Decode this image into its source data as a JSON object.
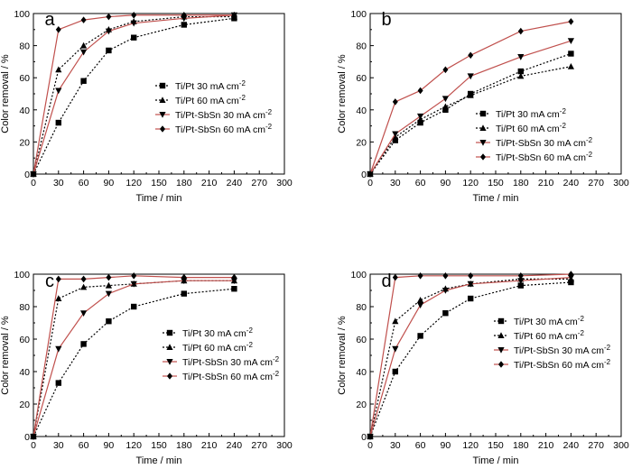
{
  "chart_data": [
    {
      "type": "line",
      "panel_label": "a",
      "xlabel": "Time / min",
      "ylabel": "Color removal / %",
      "xlim": [
        0,
        300
      ],
      "ylim": [
        0,
        100
      ],
      "xticks": [
        0,
        30,
        60,
        90,
        120,
        150,
        180,
        210,
        240,
        270,
        300
      ],
      "yticks": [
        0,
        20,
        40,
        60,
        80,
        100
      ],
      "x": [
        0,
        30,
        60,
        90,
        120,
        180,
        240
      ],
      "series": [
        {
          "name": "Ti/Pt 30 mA cm",
          "superscript": "-2",
          "marker": "square",
          "line": "dotted",
          "color": "#000000",
          "values": [
            0,
            32,
            58,
            77,
            85,
            93,
            97
          ]
        },
        {
          "name": "Ti/Pt 60 mA cm",
          "superscript": "-2",
          "marker": "triangle-up",
          "line": "dotted",
          "color": "#000000",
          "values": [
            0,
            65,
            80,
            90,
            95,
            98,
            98
          ]
        },
        {
          "name": "Ti/Pt-SbSn 30 mA cm",
          "superscript": "-2",
          "marker": "triangle-down",
          "line": "solid",
          "color": "#c0504d",
          "values": [
            0,
            52,
            76,
            89,
            94,
            97,
            99
          ]
        },
        {
          "name": "Ti/Pt-SbSn 60 mA cm",
          "superscript": "-2",
          "marker": "diamond",
          "line": "solid",
          "color": "#c0504d",
          "values": [
            0,
            90,
            96,
            98,
            99,
            99,
            99
          ]
        }
      ]
    },
    {
      "type": "line",
      "panel_label": "b",
      "xlabel": "Time / min",
      "ylabel": "Color removal / %",
      "xlim": [
        0,
        300
      ],
      "ylim": [
        0,
        100
      ],
      "xticks": [
        0,
        30,
        60,
        90,
        120,
        150,
        180,
        210,
        240,
        270,
        300
      ],
      "yticks": [
        0,
        20,
        40,
        60,
        80,
        100
      ],
      "x": [
        0,
        30,
        60,
        90,
        120,
        180,
        240
      ],
      "series": [
        {
          "name": "Ti/Pt 30 mA cm",
          "superscript": "-2",
          "marker": "square",
          "line": "dotted",
          "color": "#000000",
          "values": [
            0,
            21,
            32,
            40,
            50,
            64,
            75
          ]
        },
        {
          "name": "Ti/Pt 60 mA cm",
          "superscript": "-2",
          "marker": "triangle-up",
          "line": "dotted",
          "color": "#000000",
          "values": [
            0,
            23,
            34,
            42,
            49,
            61,
            67
          ]
        },
        {
          "name": "Ti/Pt-SbSn 30 mA cm",
          "superscript": "-2",
          "marker": "triangle-down",
          "line": "solid",
          "color": "#c0504d",
          "values": [
            0,
            25,
            36,
            47,
            61,
            73,
            83
          ]
        },
        {
          "name": "Ti/Pt-SbSn 60 mA cm",
          "superscript": "-2",
          "marker": "diamond",
          "line": "solid",
          "color": "#c0504d",
          "values": [
            0,
            45,
            52,
            65,
            74,
            89,
            95
          ]
        }
      ]
    },
    {
      "type": "line",
      "panel_label": "c",
      "xlabel": "Time / min",
      "ylabel": "Color removal / %",
      "xlim": [
        0,
        300
      ],
      "ylim": [
        0,
        100
      ],
      "xticks": [
        0,
        30,
        60,
        90,
        120,
        150,
        180,
        210,
        240,
        270,
        300
      ],
      "yticks": [
        0,
        20,
        40,
        60,
        80,
        100
      ],
      "x": [
        0,
        30,
        60,
        90,
        120,
        180,
        240
      ],
      "series": [
        {
          "name": "Ti/Pt 30 mA cm",
          "superscript": "-2",
          "marker": "square",
          "line": "dotted",
          "color": "#000000",
          "values": [
            0,
            33,
            57,
            71,
            80,
            88,
            91
          ]
        },
        {
          "name": "Ti/Pt 60 mA cm",
          "superscript": "-2",
          "marker": "triangle-up",
          "line": "dotted",
          "color": "#000000",
          "values": [
            0,
            85,
            92,
            93,
            94,
            96,
            96
          ]
        },
        {
          "name": "Ti/Pt-SbSn 30 mA cm",
          "superscript": "-2",
          "marker": "triangle-down",
          "line": "solid",
          "color": "#c0504d",
          "values": [
            0,
            54,
            76,
            88,
            94,
            96,
            96
          ]
        },
        {
          "name": "Ti/Pt-SbSn 60 mA cm",
          "superscript": "-2",
          "marker": "diamond",
          "line": "solid",
          "color": "#c0504d",
          "values": [
            0,
            97,
            97,
            98,
            99,
            98,
            98
          ]
        }
      ]
    },
    {
      "type": "line",
      "panel_label": "d",
      "xlabel": "Time / min",
      "ylabel": "Color removal / %",
      "xlim": [
        0,
        300
      ],
      "ylim": [
        0,
        100
      ],
      "xticks": [
        0,
        30,
        60,
        90,
        120,
        150,
        180,
        210,
        240,
        270,
        300
      ],
      "yticks": [
        0,
        20,
        40,
        60,
        80,
        100
      ],
      "x": [
        0,
        30,
        60,
        90,
        120,
        180,
        240
      ],
      "series": [
        {
          "name": "Ti/Pt 30 mA cm",
          "superscript": "-2",
          "marker": "square",
          "line": "dotted",
          "color": "#000000",
          "values": [
            0,
            40,
            62,
            76,
            85,
            93,
            95
          ]
        },
        {
          "name": "Ti/Pt 60 mA cm",
          "superscript": "-2",
          "marker": "triangle-up",
          "line": "dotted",
          "color": "#000000",
          "values": [
            0,
            71,
            84,
            91,
            94,
            97,
            97
          ]
        },
        {
          "name": "Ti/Pt-SbSn 30 mA cm",
          "superscript": "-2",
          "marker": "triangle-down",
          "line": "solid",
          "color": "#c0504d",
          "values": [
            0,
            54,
            81,
            90,
            94,
            96,
            98
          ]
        },
        {
          "name": "Ti/Pt-SbSn 60 mA cm",
          "superscript": "-2",
          "marker": "diamond",
          "line": "solid",
          "color": "#c0504d",
          "values": [
            0,
            98,
            99,
            99,
            99,
            99,
            100
          ]
        }
      ]
    }
  ]
}
